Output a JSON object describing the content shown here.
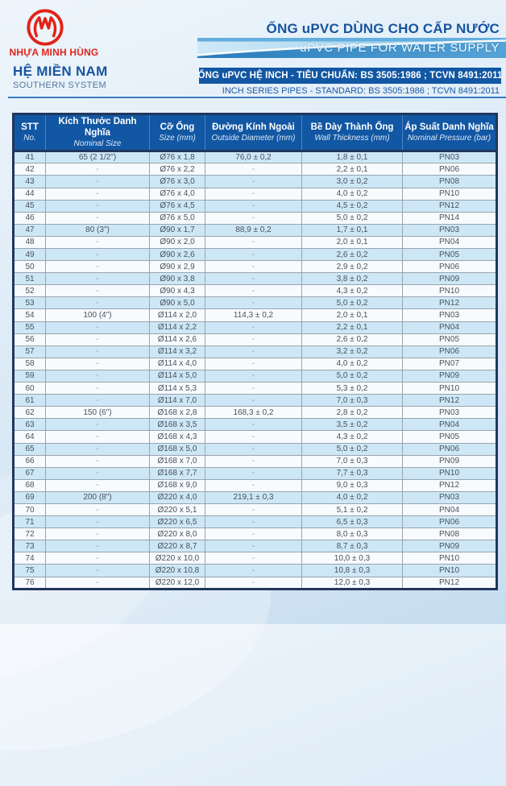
{
  "colors": {
    "brand_red": "#e2231a",
    "primary_blue": "#1257a3",
    "title_blue": "#15549e",
    "row_alt_blue": "#cde7f7"
  },
  "header": {
    "brand_name": "NHỰA MINH HÙNG",
    "system_title": "HỆ MIỀN NAM",
    "system_subtitle": "SOUTHERN SYSTEM",
    "product_title": "ỐNG uPVC DÙNG CHO CẤP NƯỚC",
    "product_subtitle": "uPVC PIPE FOR WATER SUPPLY",
    "standard_vi": "ỐNG uPVC HỆ INCH - TIÊU CHUẨN: BS 3505:1986 ; TCVN 8491:2011",
    "standard_en": "INCH SERIES PIPES - STANDARD: BS 3505:1986 ; TCVN 8491:2011"
  },
  "table": {
    "columns": [
      {
        "vi": "STT",
        "en": "No."
      },
      {
        "vi": "Kích Thước Danh Nghĩa",
        "en": "Nominal Size"
      },
      {
        "vi": "Cỡ Ống",
        "en": "Size (mm)"
      },
      {
        "vi": "Đường Kính Ngoài",
        "en": "Outside Diameter (mm)"
      },
      {
        "vi": "Bề Dày Thành Ống",
        "en": "Wall Thickness (mm)"
      },
      {
        "vi": "Áp Suất Danh Nghĩa",
        "en": "Nominal Pressure (bar)"
      }
    ],
    "rows": [
      [
        "41",
        "65 (2 1/2\")",
        "Ø76 x 1,8",
        "76,0 ± 0,2",
        "1,8 ± 0,1",
        "PN03"
      ],
      [
        "42",
        "-",
        "Ø76 x 2,2",
        "-",
        "2,2 ± 0,1",
        "PN06"
      ],
      [
        "43",
        "-",
        "Ø76 x 3,0",
        "-",
        "3,0 ± 0,2",
        "PN08"
      ],
      [
        "44",
        "-",
        "Ø76 x 4,0",
        "-",
        "4,0 ± 0,2",
        "PN10"
      ],
      [
        "45",
        "-",
        "Ø76 x 4,5",
        "-",
        "4,5 ± 0,2",
        "PN12"
      ],
      [
        "46",
        "-",
        "Ø76 x 5,0",
        "-",
        "5,0 ± 0,2",
        "PN14"
      ],
      [
        "47",
        "80 (3\")",
        "Ø90 x 1,7",
        "88,9 ± 0,2",
        "1,7 ± 0,1",
        "PN03"
      ],
      [
        "48",
        "-",
        "Ø90 x 2,0",
        "-",
        "2,0 ± 0,1",
        "PN04"
      ],
      [
        "49",
        "-",
        "Ø90 x 2,6",
        "-",
        "2,6 ± 0,2",
        "PN05"
      ],
      [
        "50",
        "-",
        "Ø90 x 2,9",
        "-",
        "2,9 ± 0,2",
        "PN06"
      ],
      [
        "51",
        "-",
        "Ø90 x 3,8",
        "-",
        "3,8 ± 0,2",
        "PN09"
      ],
      [
        "52",
        "-",
        "Ø90 x 4,3",
        "-",
        "4,3 ± 0,2",
        "PN10"
      ],
      [
        "53",
        "-",
        "Ø90 x 5,0",
        "-",
        "5,0 ± 0,2",
        "PN12"
      ],
      [
        "54",
        "100 (4\")",
        "Ø114 x 2,0",
        "114,3 ± 0,2",
        "2,0 ± 0,1",
        "PN03"
      ],
      [
        "55",
        "-",
        "Ø114 x 2,2",
        "-",
        "2,2 ± 0,1",
        "PN04"
      ],
      [
        "56",
        "-",
        "Ø114 x 2,6",
        "-",
        "2,6 ± 0,2",
        "PN05"
      ],
      [
        "57",
        "-",
        "Ø114 x 3,2",
        "-",
        "3,2 ± 0,2",
        "PN06"
      ],
      [
        "58",
        "-",
        "Ø114 x 4,0",
        "-",
        "4,0 ± 0,2",
        "PN07"
      ],
      [
        "59",
        "-",
        "Ø114 x 5,0",
        "-",
        "5,0 ± 0,2",
        "PN09"
      ],
      [
        "60",
        "-",
        "Ø114 x 5,3",
        "-",
        "5,3 ± 0,2",
        "PN10"
      ],
      [
        "61",
        "-",
        "Ø114 x 7,0",
        "-",
        "7,0 ± 0,3",
        "PN12"
      ],
      [
        "62",
        "150 (6\")",
        "Ø168 x 2,8",
        "168,3 ± 0,2",
        "2,8 ± 0,2",
        "PN03"
      ],
      [
        "63",
        "-",
        "Ø168 x 3,5",
        "-",
        "3,5 ± 0,2",
        "PN04"
      ],
      [
        "64",
        "-",
        "Ø168 x 4,3",
        "-",
        "4,3 ± 0,2",
        "PN05"
      ],
      [
        "65",
        "-",
        "Ø168 x 5,0",
        "-",
        "5,0 ± 0,2",
        "PN06"
      ],
      [
        "66",
        "-",
        "Ø168 x 7,0",
        "-",
        "7,0 ± 0,3",
        "PN09"
      ],
      [
        "67",
        "-",
        "Ø168 x 7,7",
        "-",
        "7,7 ± 0,3",
        "PN10"
      ],
      [
        "68",
        "-",
        "Ø168 x 9,0",
        "-",
        "9,0 ± 0,3",
        "PN12"
      ],
      [
        "69",
        "200 (8\")",
        "Ø220 x 4,0",
        "219,1 ± 0,3",
        "4,0 ± 0,2",
        "PN03"
      ],
      [
        "70",
        "-",
        "Ø220 x 5,1",
        "-",
        "5,1 ± 0,2",
        "PN04"
      ],
      [
        "71",
        "-",
        "Ø220 x 6,5",
        "-",
        "6,5 ± 0,3",
        "PN06"
      ],
      [
        "72",
        "-",
        "Ø220 x 8,0",
        "-",
        "8,0 ± 0,3",
        "PN08"
      ],
      [
        "73",
        "-",
        "Ø220 x 8,7",
        "-",
        "8,7 ± 0,3",
        "PN09"
      ],
      [
        "74",
        "-",
        "Ø220 x 10,0",
        "-",
        "10,0 ± 0,3",
        "PN10"
      ],
      [
        "75",
        "-",
        "Ø220 x 10,8",
        "-",
        "10,8 ± 0,3",
        "PN10"
      ],
      [
        "76",
        "-",
        "Ø220 x 12,0",
        "-",
        "12,0 ± 0,3",
        "PN12"
      ]
    ],
    "cell_names": [
      "row-number",
      "nominal-size",
      "pipe-size",
      "outside-diameter",
      "wall-thickness",
      "nominal-pressure"
    ]
  }
}
